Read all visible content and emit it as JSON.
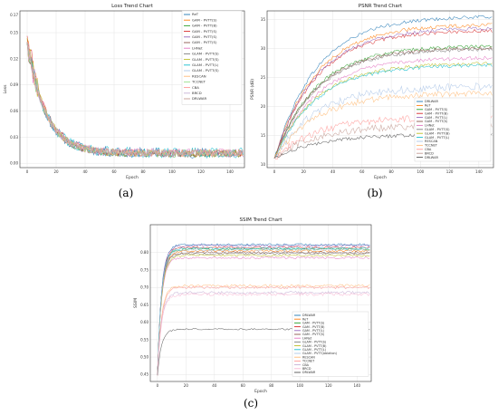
{
  "captions": [
    "(a)",
    "(b)",
    "(c)"
  ],
  "chart_data": [
    {
      "type": "line",
      "title": "Loss Trend Chart",
      "xlabel": "Epoch",
      "ylabel": "Loss",
      "xlim": [
        -5,
        150
      ],
      "ylim": [
        -0.005,
        0.175
      ],
      "xticks": [
        0,
        20,
        40,
        60,
        80,
        100,
        120,
        140
      ],
      "yticks": [
        0.0,
        0.03,
        0.06,
        0.09,
        0.12,
        0.15
      ],
      "ytick_labels": [
        "0.00",
        "0.03",
        "0.06",
        "0.09",
        "0.12",
        "0.15"
      ],
      "ytick_top_label": "0.17",
      "grid": true,
      "legend_position": "upper right",
      "epochs": 150,
      "series": [
        {
          "name": "ReT",
          "color": "#1f77b4",
          "start": 0.14,
          "final": 0.012,
          "noise": 0.006
        },
        {
          "name": "GAM - PVTT(S)",
          "color": "#ff7f0e",
          "start": 0.145,
          "final": 0.011,
          "noise": 0.004
        },
        {
          "name": "GAM - PVTT(B)",
          "color": "#2ca02c",
          "start": 0.14,
          "final": 0.011,
          "noise": 0.004
        },
        {
          "name": "GAM - PVTT(S)",
          "color": "#d62728",
          "start": 0.148,
          "final": 0.012,
          "noise": 0.004
        },
        {
          "name": "GAM - PVTT(S)",
          "color": "#9467bd",
          "start": 0.14,
          "final": 0.011,
          "noise": 0.004
        },
        {
          "name": "GAM - PVTT(S)",
          "color": "#8c564b",
          "start": 0.14,
          "final": 0.011,
          "noise": 0.004
        },
        {
          "name": "LHNet",
          "color": "#e377c2",
          "start": 0.14,
          "final": 0.012,
          "noise": 0.005
        },
        {
          "name": "GLAM - PVTT(S)",
          "color": "#7f7f7f",
          "start": 0.14,
          "final": 0.011,
          "noise": 0.004
        },
        {
          "name": "GLAM - PVTT(S)",
          "color": "#bcbd22",
          "start": 0.145,
          "final": 0.011,
          "noise": 0.004
        },
        {
          "name": "GLAM - PVTT(L)",
          "color": "#17becf",
          "start": 0.14,
          "final": 0.012,
          "noise": 0.006
        },
        {
          "name": "GLAM - PVTT(S)",
          "color": "#aec7e8",
          "start": 0.14,
          "final": 0.011,
          "noise": 0.004
        },
        {
          "name": "RESCAN",
          "color": "#ffbb78",
          "start": 0.14,
          "final": 0.012,
          "noise": 0.004
        },
        {
          "name": "TCCNET",
          "color": "#98df8a",
          "start": 0.14,
          "final": 0.012,
          "noise": 0.004
        },
        {
          "name": "CBA",
          "color": "#ff9896",
          "start": 0.14,
          "final": 0.012,
          "noise": 0.004
        },
        {
          "name": "BRCD",
          "color": "#c5b0d5",
          "start": 0.14,
          "final": 0.012,
          "noise": 0.004
        },
        {
          "name": "DRLWAR",
          "color": "#c49c94",
          "start": 0.14,
          "final": 0.012,
          "noise": 0.004
        }
      ]
    },
    {
      "type": "line",
      "title": "PSNR Trend Chart",
      "xlabel": "Epoch",
      "ylabel": "PSNR (dB)",
      "xlim": [
        -5,
        150
      ],
      "ylim": [
        9.5,
        36.5
      ],
      "xticks": [
        0,
        20,
        40,
        60,
        80,
        100,
        120,
        140
      ],
      "yticks": [
        10,
        15,
        20,
        25,
        30,
        35
      ],
      "grid": true,
      "legend_position": "lower right",
      "epochs": 150,
      "series": [
        {
          "name": "DRLWAR",
          "color": "#1f77b4",
          "start": 11.0,
          "final": 35.6,
          "noise": 0.3
        },
        {
          "name": "ReT",
          "color": "#ff7f0e",
          "start": 11.0,
          "final": 34.2,
          "noise": 0.3
        },
        {
          "name": "GAM - PVTT(S)",
          "color": "#2ca02c",
          "start": 11.0,
          "final": 30.5,
          "noise": 0.3
        },
        {
          "name": "GAM - PVTT(B)",
          "color": "#d62728",
          "start": 11.0,
          "final": 33.2,
          "noise": 0.3
        },
        {
          "name": "GAM - PVTT(L)",
          "color": "#9467bd",
          "start": 11.0,
          "final": 33.6,
          "noise": 0.3
        },
        {
          "name": "GAM - PVTT(S)",
          "color": "#8c564b",
          "start": 11.0,
          "final": 30.2,
          "noise": 0.3
        },
        {
          "name": "LHNet",
          "color": "#e377c2",
          "start": 11.0,
          "final": 28.5,
          "noise": 0.3
        },
        {
          "name": "GLAM - PVTT(S)",
          "color": "#7f7f7f",
          "start": 11.0,
          "final": 30.0,
          "noise": 0.3
        },
        {
          "name": "GLAM - PVTT(B)",
          "color": "#bcbd22",
          "start": 11.0,
          "final": 27.5,
          "noise": 0.3
        },
        {
          "name": "GLAM - PVTT(L)",
          "color": "#17becf",
          "start": 11.0,
          "final": 27.2,
          "noise": 0.3
        },
        {
          "name": "RESCAN",
          "color": "#aec7e8",
          "start": 11.0,
          "final": 23.5,
          "noise": 0.7
        },
        {
          "name": "TCCNET",
          "color": "#ffbb78",
          "start": 11.0,
          "final": 22.3,
          "noise": 0.5
        },
        {
          "name": "CBA",
          "color": "#ff9896",
          "start": 11.0,
          "final": 18.2,
          "noise": 0.6
        },
        {
          "name": "BRCD",
          "color": "#c49c94",
          "start": 11.0,
          "final": 16.8,
          "noise": 0.6
        },
        {
          "name": "DRLWAR",
          "color": "#555555",
          "start": 11.0,
          "final": 15.2,
          "noise": 0.3
        }
      ]
    },
    {
      "type": "line",
      "title": "SSIM Trend Chart",
      "xlabel": "Epoch",
      "ylabel": "SSIM",
      "xlim": [
        -5,
        150
      ],
      "ylim": [
        0.43,
        0.88
      ],
      "xticks": [
        0,
        20,
        40,
        60,
        80,
        100,
        120,
        140
      ],
      "yticks": [
        0.45,
        0.5,
        0.55,
        0.6,
        0.65,
        0.7,
        0.75,
        0.8
      ],
      "ytick_labels": [
        "0.45",
        "0.50",
        "0.55",
        "0.60",
        "0.65",
        "0.70",
        "0.75",
        "0.80"
      ],
      "grid": true,
      "legend_position": "lower right",
      "epochs": 150,
      "series": [
        {
          "name": "DRLWAR",
          "color": "#1f77b4",
          "start": 0.45,
          "final": 0.823,
          "noise": 0.003
        },
        {
          "name": "ReT",
          "color": "#ff7f0e",
          "start": 0.45,
          "final": 0.805,
          "noise": 0.003
        },
        {
          "name": "GAM - PVTT(S)",
          "color": "#2ca02c",
          "start": 0.45,
          "final": 0.81,
          "noise": 0.003
        },
        {
          "name": "GAM - PVTT(B)",
          "color": "#d62728",
          "start": 0.45,
          "final": 0.815,
          "noise": 0.003
        },
        {
          "name": "GAM - PVTT(L)",
          "color": "#9467bd",
          "start": 0.45,
          "final": 0.82,
          "noise": 0.003
        },
        {
          "name": "GAM - PVTT(S)",
          "color": "#8c564b",
          "start": 0.45,
          "final": 0.8,
          "noise": 0.003
        },
        {
          "name": "LHNet",
          "color": "#e377c2",
          "start": 0.45,
          "final": 0.785,
          "noise": 0.003
        },
        {
          "name": "GLAM - PVTT(S)",
          "color": "#7f7f7f",
          "start": 0.45,
          "final": 0.797,
          "noise": 0.003
        },
        {
          "name": "GLAM - PVTT(B)",
          "color": "#bcbd22",
          "start": 0.45,
          "final": 0.792,
          "noise": 0.003
        },
        {
          "name": "GLAM - PVTT(L)",
          "color": "#17becf",
          "start": 0.45,
          "final": 0.812,
          "noise": 0.003
        },
        {
          "name": "GLAM - PVTT(Ablation)",
          "color": "#aec7e8",
          "start": 0.45,
          "final": 0.808,
          "noise": 0.003
        },
        {
          "name": "RESCAN",
          "color": "#ffbb78",
          "start": 0.45,
          "final": 0.705,
          "noise": 0.004
        },
        {
          "name": "TCCNET",
          "color": "#ff9896",
          "start": 0.45,
          "final": 0.7,
          "noise": 0.004
        },
        {
          "name": "CBA",
          "color": "#c5b0d5",
          "start": 0.45,
          "final": 0.685,
          "noise": 0.004
        },
        {
          "name": "BRCD",
          "color": "#f7b6d2",
          "start": 0.45,
          "final": 0.68,
          "noise": 0.004
        },
        {
          "name": "DRLWAR",
          "color": "#555555",
          "start": 0.45,
          "final": 0.58,
          "noise": 0.002
        }
      ]
    }
  ]
}
